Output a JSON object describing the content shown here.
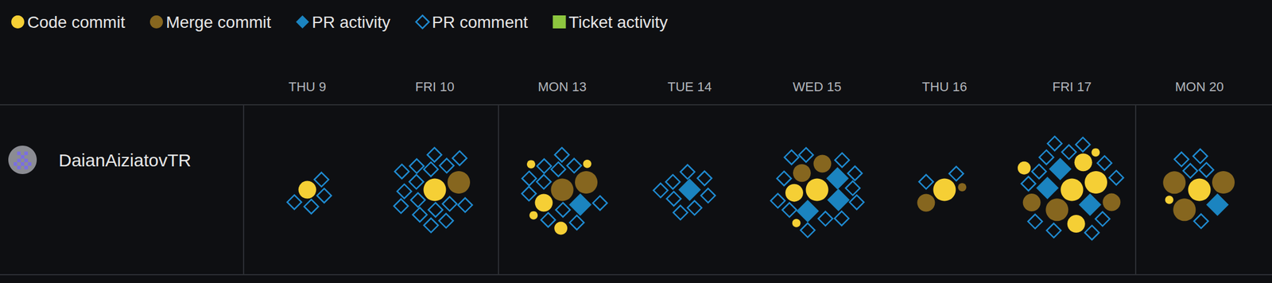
{
  "chart_data": {
    "type": "activity",
    "categories": [
      "THU 9",
      "FRI 10",
      "MON 13",
      "TUE 14",
      "WED 15",
      "THU 16",
      "FRI 17",
      "MON 20"
    ],
    "y_categories": [
      "DaianAiziatovTR"
    ],
    "legend": "top",
    "series": [
      {
        "name": "Code commit",
        "color": "#f5cf35",
        "marker": "circle",
        "values": [
          1,
          1,
          5,
          0,
          3,
          1,
          6,
          2
        ],
        "sizes": [
          [
            3
          ],
          [
            4
          ],
          [
            3,
            1,
            2,
            1,
            1
          ],
          [],
          [
            3,
            4,
            1
          ],
          [
            4
          ],
          [
            3,
            3,
            4,
            2,
            1,
            4
          ],
          [
            1,
            4
          ]
        ]
      },
      {
        "name": "Merge commit",
        "color": "#86661f",
        "marker": "circle",
        "values": [
          0,
          1,
          2,
          0,
          2,
          2,
          3,
          3
        ],
        "sizes": [
          [],
          [
            4
          ],
          [
            4,
            4
          ],
          [],
          [
            3,
            3
          ],
          [
            1,
            3
          ],
          [
            4,
            3,
            3
          ],
          [
            4,
            4,
            4
          ]
        ]
      },
      {
        "name": "PR activity",
        "color": "#1b84c0",
        "marker": "diamond",
        "values": [
          0,
          0,
          1,
          1,
          3,
          0,
          3,
          1
        ]
      },
      {
        "name": "PR comment",
        "color": "#1f8ad0",
        "marker": "open_diamond",
        "values": [
          4,
          16,
          11,
          8,
          12,
          2,
          12,
          5
        ]
      },
      {
        "name": "Ticket activity",
        "color": "#8dc63f",
        "marker": "square",
        "values": [
          0,
          0,
          0,
          0,
          0,
          0,
          0,
          0
        ]
      }
    ]
  }
}
